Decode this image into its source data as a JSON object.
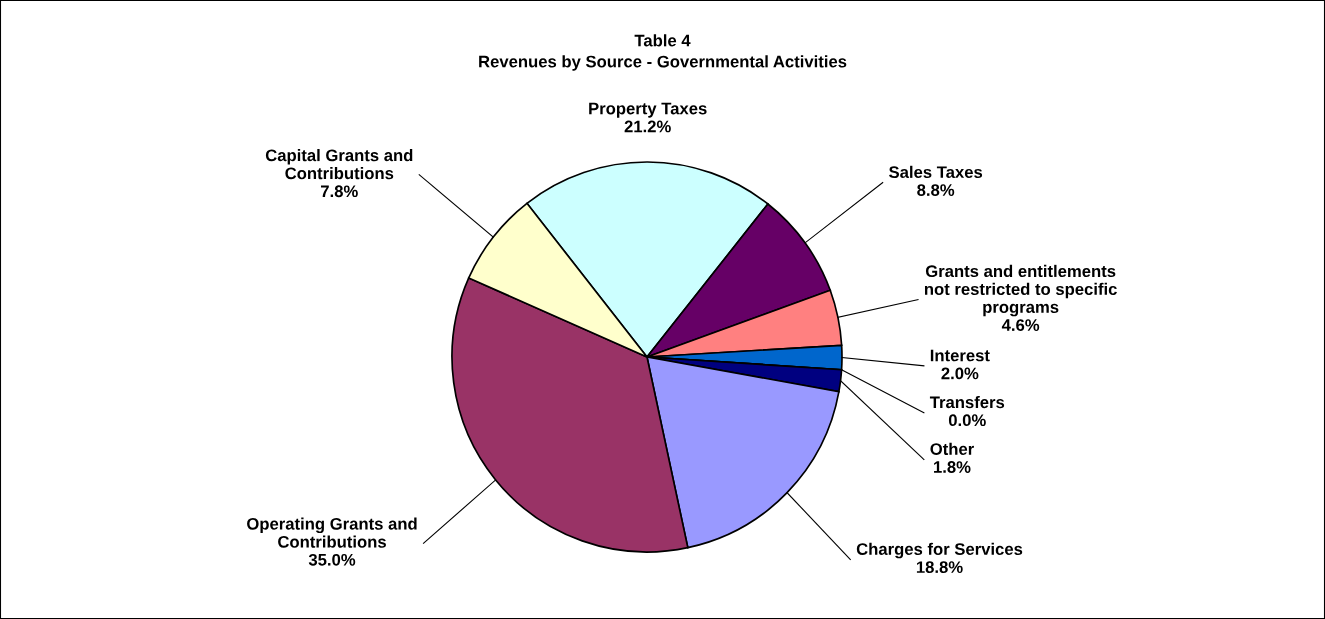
{
  "chart_data": {
    "type": "pie",
    "title": "Table 4",
    "subtitle": "Revenues by Source - Governmental Activities",
    "categories": [
      "Property Taxes",
      "Sales Taxes",
      "Grants and entitlements\nnot restricted to specific\nprograms",
      "Interest",
      "Transfers",
      "Other",
      "Charges for Services",
      "Operating Grants and\nContributions",
      "Capital Grants and\nContributions"
    ],
    "values": [
      21.2,
      8.8,
      4.6,
      2.0,
      0.0,
      1.8,
      18.8,
      35.0,
      7.8
    ],
    "colors": [
      "#ccffff",
      "#660066",
      "#ff8080",
      "#0066cc",
      "#ccccff",
      "#000080",
      "#9999ff",
      "#993366",
      "#ffffcc"
    ],
    "value_labels": [
      "21.2%",
      "8.8%",
      "4.6%",
      "2.0%",
      "0.0%",
      "1.8%",
      "18.8%",
      "35.0%",
      "7.8%"
    ],
    "data_labels": true
  }
}
